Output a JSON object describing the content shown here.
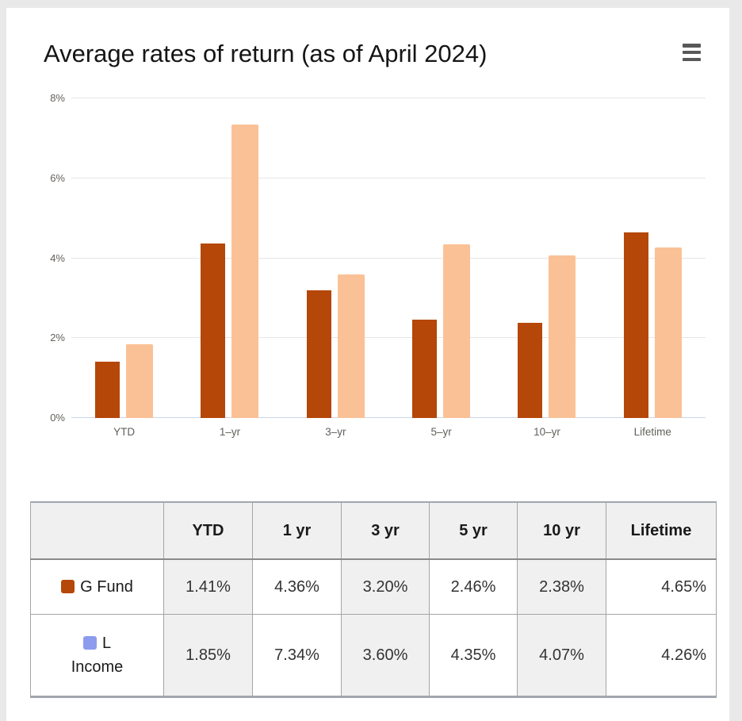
{
  "header": {
    "title": "Average rates of return (as of April 2024)",
    "menu_icon": "hamburger-menu-icon"
  },
  "colors": {
    "g_fund": "#b54708",
    "l_income_bar": "#fbc196",
    "l_income_swatch": "#8d9bef",
    "grid": "#e6e6e6",
    "baseline": "#ccd6eb",
    "table_shade": "#f0f0f0"
  },
  "chart_data": {
    "type": "bar",
    "title": "Average rates of return (as of April 2024)",
    "categories": [
      "YTD",
      "1–yr",
      "3–yr",
      "5–yr",
      "10–yr",
      "Lifetime"
    ],
    "series": [
      {
        "name": "G Fund",
        "color": "#b54708",
        "values": [
          1.41,
          4.36,
          3.2,
          2.46,
          2.38,
          4.65
        ]
      },
      {
        "name": "L Income",
        "color": "#fbc196",
        "values": [
          1.85,
          7.34,
          3.6,
          4.35,
          4.07,
          4.26
        ]
      }
    ],
    "xlabel": "",
    "ylabel": "",
    "ylim": [
      0,
      8
    ],
    "yticks": [
      {
        "value": 0,
        "label": "0%"
      },
      {
        "value": 2,
        "label": "2%"
      },
      {
        "value": 4,
        "label": "4%"
      },
      {
        "value": 6,
        "label": "6%"
      },
      {
        "value": 8,
        "label": "8%"
      }
    ],
    "grid": true,
    "legend_position": "table-below"
  },
  "table": {
    "columns": [
      "",
      "YTD",
      "1 yr",
      "3 yr",
      "5 yr",
      "10 yr",
      "Lifetime"
    ],
    "rows": [
      {
        "label": "G Fund",
        "swatch_color": "#b54708",
        "values": [
          "1.41%",
          "4.36%",
          "3.20%",
          "2.46%",
          "2.38%",
          "4.65%"
        ]
      },
      {
        "label": "L Income",
        "swatch_color": "#8d9bef",
        "values": [
          "1.85%",
          "7.34%",
          "3.60%",
          "4.35%",
          "4.07%",
          "4.26%"
        ]
      }
    ]
  }
}
